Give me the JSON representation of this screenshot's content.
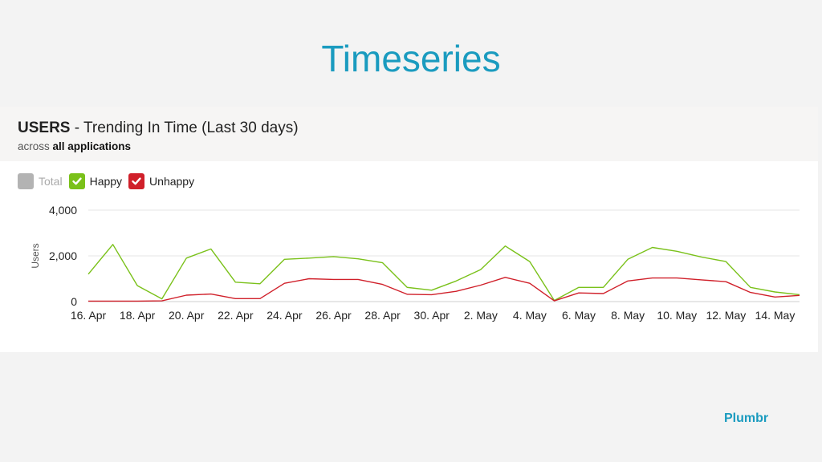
{
  "slide": {
    "title": "Timeseries",
    "brand": "Plumbr"
  },
  "panel": {
    "title_bold": "USERS",
    "title_rest": " - Trending In Time (Last 30 days)",
    "sub_prefix": "across ",
    "sub_bold": "all applications"
  },
  "colors": {
    "accent": "#1a9bbf",
    "happy": "#7ac11a",
    "unhappy": "#d0202a",
    "total": "#b3b3b3"
  },
  "legend": [
    {
      "label": "Total",
      "color": "#b3b3b3",
      "checked": false
    },
    {
      "label": "Happy",
      "color": "#7ac11a",
      "checked": true
    },
    {
      "label": "Unhappy",
      "color": "#d0202a",
      "checked": true
    }
  ],
  "chart_data": {
    "type": "line",
    "title": "USERS - Trending In Time (Last 30 days)",
    "ylabel": "Users",
    "xlabel": "",
    "ylim": [
      0,
      4000
    ],
    "yticks": [
      "0",
      "2,000",
      "4,000"
    ],
    "ytick_values": [
      0,
      2000,
      4000
    ],
    "x": [
      "16. Apr",
      "17. Apr",
      "18. Apr",
      "19. Apr",
      "20. Apr",
      "21. Apr",
      "22. Apr",
      "23. Apr",
      "24. Apr",
      "25. Apr",
      "26. Apr",
      "27. Apr",
      "28. Apr",
      "29. Apr",
      "30. Apr",
      "1. May",
      "2. May",
      "3. May",
      "4. May",
      "5. May",
      "6. May",
      "7. May",
      "8. May",
      "9. May",
      "10. May",
      "11. May",
      "12. May",
      "13. May",
      "14. May",
      "15. May"
    ],
    "xtick_labels": [
      "16. Apr",
      "18. Apr",
      "20. Apr",
      "22. Apr",
      "24. Apr",
      "26. Apr",
      "28. Apr",
      "30. Apr",
      "2. May",
      "4. May",
      "6. May",
      "8. May",
      "10. May",
      "12. May",
      "14. May"
    ],
    "series": [
      {
        "name": "Happy",
        "color": "#7ac11a",
        "values": [
          1200,
          2500,
          700,
          120,
          1900,
          2300,
          850,
          780,
          1850,
          1900,
          1970,
          1870,
          1700,
          620,
          500,
          900,
          1400,
          2430,
          1750,
          50,
          620,
          620,
          1850,
          2370,
          2200,
          1950,
          1750,
          620,
          420,
          300
        ]
      },
      {
        "name": "Unhappy",
        "color": "#d0202a",
        "values": [
          20,
          20,
          20,
          30,
          280,
          330,
          130,
          130,
          800,
          1000,
          970,
          970,
          750,
          320,
          300,
          450,
          720,
          1060,
          800,
          30,
          380,
          350,
          900,
          1030,
          1030,
          950,
          870,
          400,
          200,
          270
        ]
      }
    ],
    "grid": true,
    "legend_position": "top-left"
  }
}
